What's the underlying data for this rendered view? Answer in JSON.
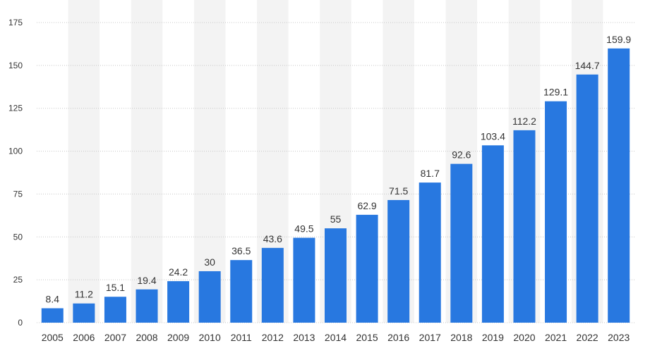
{
  "chart_data": {
    "type": "bar",
    "title": "",
    "xlabel": "",
    "ylabel": "",
    "categories": [
      "2005",
      "2006",
      "2007",
      "2008",
      "2009",
      "2010",
      "2011",
      "2012",
      "2013",
      "2014",
      "2015",
      "2016",
      "2017",
      "2018",
      "2019",
      "2020",
      "2021",
      "2022",
      "2023"
    ],
    "values": [
      8.4,
      11.2,
      15.1,
      19.4,
      24.2,
      30,
      36.5,
      43.6,
      49.5,
      55,
      62.9,
      71.5,
      81.7,
      92.6,
      103.4,
      112.2,
      129.1,
      144.7,
      159.9
    ],
    "data_labels": [
      "8.4",
      "11.2",
      "15.1",
      "19.4",
      "24.2",
      "30",
      "36.5",
      "43.6",
      "49.5",
      "55",
      "62.9",
      "71.5",
      "81.7",
      "92.6",
      "103.4",
      "112.2",
      "129.1",
      "144.7",
      "159.9"
    ],
    "ylim": [
      0,
      175
    ],
    "yticks": [
      0,
      25,
      50,
      75,
      100,
      125,
      150,
      175
    ],
    "ytick_labels": [
      "0",
      "25",
      "50",
      "75",
      "100",
      "125",
      "150",
      "175"
    ],
    "grid": "horizontal-dotted",
    "alternating_column_bands": true,
    "bar_color": "#2878e0",
    "band_color": "#f3f3f3",
    "legend": "none"
  }
}
